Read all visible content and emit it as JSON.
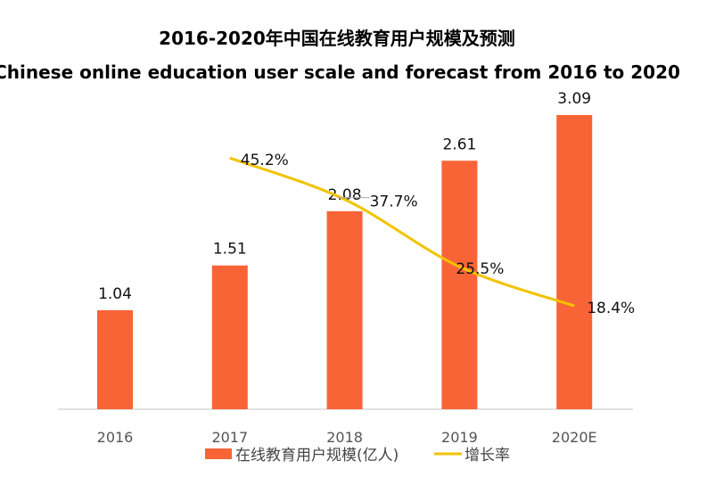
{
  "chart_data": {
    "type": "bar+line",
    "title": "2016-2020年中国在线教育用户规模及预测",
    "subtitle": "Chinese online education user scale and forecast from 2016 to 2020",
    "categories": [
      "2016",
      "2017",
      "2018",
      "2019",
      "2020E"
    ],
    "series": [
      {
        "name": "在线教育用户规模(亿人)",
        "type": "bar",
        "axis": "left",
        "values": [
          1.04,
          1.51,
          2.08,
          2.61,
          3.09
        ],
        "labels": [
          "1.04",
          "1.51",
          "2.08",
          "2.61",
          "3.09"
        ],
        "color": "#F96436"
      },
      {
        "name": "增长率",
        "type": "line",
        "axis": "right",
        "values": [
          null,
          45.2,
          37.7,
          25.5,
          18.4
        ],
        "labels": [
          "",
          "45.2%",
          "37.7%",
          "25.5%",
          "18.4%"
        ],
        "color": "#F2C300"
      }
    ],
    "ylim_left": [
      0,
      3.1
    ],
    "ylim_right": [
      0,
      45.5
    ],
    "grid": false,
    "legend": "bottom"
  }
}
